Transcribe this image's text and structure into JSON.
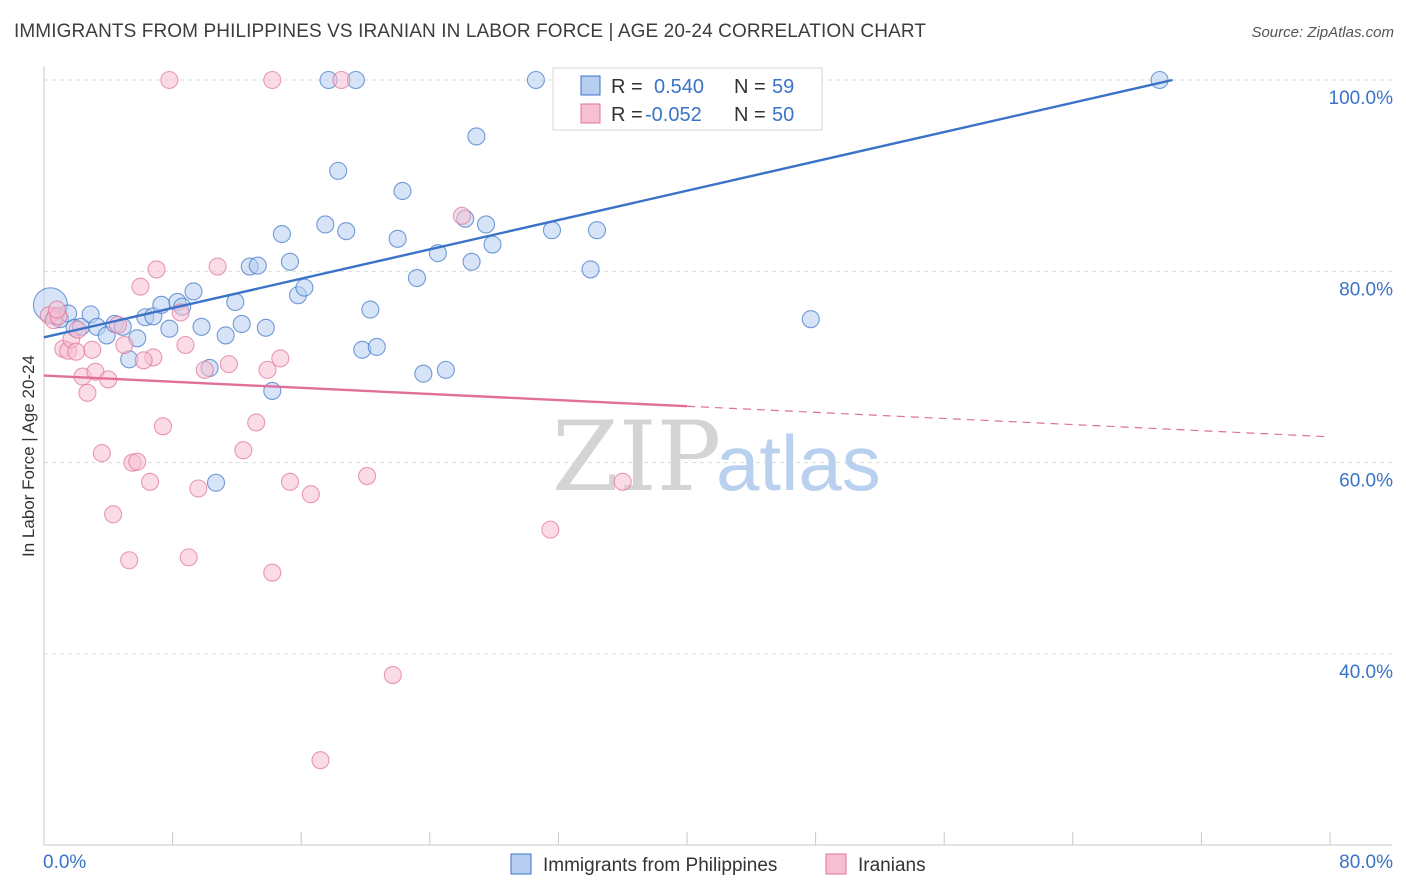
{
  "title": "IMMIGRANTS FROM PHILIPPINES VS IRANIAN IN LABOR FORCE | AGE 20-24 CORRELATION CHART",
  "source": "Source: ZipAtlas.com",
  "watermark": {
    "zip": "ZIP",
    "atlas": "atlas"
  },
  "stats": {
    "r_label": "R =",
    "n_label": "N =",
    "rows": [
      {
        "r": "0.540",
        "n": "59",
        "color": "#3a73c7",
        "fill": "#b7cef0"
      },
      {
        "r": "-0.052",
        "n": "50",
        "color": "#e0709a",
        "fill": "#f7c0d2"
      }
    ]
  },
  "colors": {
    "blue": "#3a73c7",
    "blue_fill": "#b7cef0",
    "pink": "#e0709a",
    "pink_fill": "#f7c0d2",
    "grid": "#dedede"
  },
  "chart_data": {
    "type": "scatter",
    "title": "IMMIGRANTS FROM PHILIPPINES VS IRANIAN IN LABOR FORCE | AGE 20-24 CORRELATION CHART",
    "xlabel": "",
    "ylabel": "In Labor Force | Age 20-24",
    "xlim": [
      0,
      80
    ],
    "ylim": [
      20,
      104
    ],
    "x_ticks": [
      "0.0%",
      "80.0%"
    ],
    "y_ticks": [
      {
        "value": 40,
        "label": "40.0%"
      },
      {
        "value": 60,
        "label": "60.0%"
      },
      {
        "value": 80,
        "label": "80.0%"
      },
      {
        "value": 100,
        "label": "100.0%"
      }
    ],
    "grid": true,
    "legend_position": "bottom",
    "series": [
      {
        "name": "Immigrants from Philippines",
        "color": "#3a73c7",
        "trend": {
          "x0": 0,
          "y0": 73.1,
          "x1": 70.2,
          "y1": 100.0,
          "dashed_to": null
        },
        "points": [
          [
            0.4,
            76.5
          ],
          [
            0.7,
            75.3
          ],
          [
            1.0,
            75.0
          ],
          [
            1.5,
            75.6
          ],
          [
            1.9,
            74.1
          ],
          [
            2.3,
            74.2
          ],
          [
            2.9,
            75.5
          ],
          [
            3.3,
            74.2
          ],
          [
            3.9,
            73.3
          ],
          [
            4.4,
            74.5
          ],
          [
            4.9,
            74.2
          ],
          [
            5.3,
            70.8
          ],
          [
            5.8,
            73.0
          ],
          [
            6.3,
            75.2
          ],
          [
            6.8,
            75.3
          ],
          [
            7.3,
            76.5
          ],
          [
            7.8,
            74.0
          ],
          [
            8.3,
            76.8
          ],
          [
            8.6,
            76.3
          ],
          [
            9.3,
            77.9
          ],
          [
            9.8,
            74.2
          ],
          [
            10.3,
            69.9
          ],
          [
            10.7,
            57.9
          ],
          [
            11.3,
            73.3
          ],
          [
            11.9,
            76.8
          ],
          [
            12.3,
            74.5
          ],
          [
            12.8,
            80.5
          ],
          [
            13.3,
            80.6
          ],
          [
            13.8,
            74.1
          ],
          [
            14.2,
            67.5
          ],
          [
            14.8,
            83.9
          ],
          [
            15.3,
            81.0
          ],
          [
            15.8,
            77.5
          ],
          [
            16.2,
            78.3
          ],
          [
            17.5,
            84.9
          ],
          [
            18.3,
            90.5
          ],
          [
            18.8,
            84.2
          ],
          [
            19.8,
            71.8
          ],
          [
            20.3,
            76.0
          ],
          [
            20.7,
            72.1
          ],
          [
            22.0,
            83.4
          ],
          [
            22.3,
            88.4
          ],
          [
            23.2,
            79.3
          ],
          [
            23.6,
            69.3
          ],
          [
            24.5,
            81.9
          ],
          [
            25.0,
            69.7
          ],
          [
            26.2,
            85.5
          ],
          [
            26.6,
            81.0
          ],
          [
            26.9,
            94.1
          ],
          [
            27.5,
            84.9
          ],
          [
            27.9,
            82.8
          ],
          [
            31.6,
            84.3
          ],
          [
            34.0,
            80.2
          ],
          [
            34.4,
            84.3
          ],
          [
            47.7,
            75.0
          ],
          [
            17.7,
            100.0
          ],
          [
            19.4,
            100.0
          ],
          [
            30.6,
            100.0
          ],
          [
            69.4,
            100.0
          ]
        ]
      },
      {
        "name": "Iranians",
        "color": "#e0709a",
        "trend": {
          "x0": 0,
          "y0": 69.1,
          "x1": 40.0,
          "y1": 65.9,
          "dashed_to": {
            "x": 80.0,
            "y": 62.7
          }
        },
        "points": [
          [
            0.3,
            75.4
          ],
          [
            0.6,
            74.9
          ],
          [
            0.9,
            75.3
          ],
          [
            1.2,
            71.9
          ],
          [
            1.5,
            71.7
          ],
          [
            1.7,
            72.9
          ],
          [
            2.1,
            73.9
          ],
          [
            2.4,
            69.0
          ],
          [
            2.7,
            67.3
          ],
          [
            3.0,
            71.8
          ],
          [
            3.2,
            69.5
          ],
          [
            3.6,
            61.0
          ],
          [
            4.0,
            68.7
          ],
          [
            4.3,
            54.6
          ],
          [
            4.6,
            74.4
          ],
          [
            5.0,
            72.3
          ],
          [
            5.3,
            49.8
          ],
          [
            5.5,
            60.0
          ],
          [
            5.8,
            60.1
          ],
          [
            6.0,
            78.4
          ],
          [
            6.6,
            58.0
          ],
          [
            6.8,
            71.0
          ],
          [
            7.0,
            80.2
          ],
          [
            7.4,
            63.8
          ],
          [
            8.5,
            75.7
          ],
          [
            8.8,
            72.3
          ],
          [
            9.0,
            50.1
          ],
          [
            9.6,
            57.3
          ],
          [
            10.0,
            69.7
          ],
          [
            10.8,
            80.5
          ],
          [
            12.4,
            61.3
          ],
          [
            13.2,
            64.2
          ],
          [
            13.9,
            69.7
          ],
          [
            14.2,
            48.5
          ],
          [
            14.7,
            70.9
          ],
          [
            15.3,
            58.0
          ],
          [
            16.6,
            56.7
          ],
          [
            17.2,
            28.9
          ],
          [
            20.1,
            58.6
          ],
          [
            21.7,
            37.8
          ],
          [
            26.0,
            85.8
          ],
          [
            31.5,
            53.0
          ],
          [
            36.0,
            58.0
          ],
          [
            7.8,
            100.0
          ],
          [
            14.2,
            100.0
          ],
          [
            18.5,
            100.0
          ],
          [
            0.8,
            76.0
          ],
          [
            2.0,
            71.6
          ],
          [
            6.2,
            70.7
          ],
          [
            11.5,
            70.3
          ]
        ]
      }
    ]
  }
}
